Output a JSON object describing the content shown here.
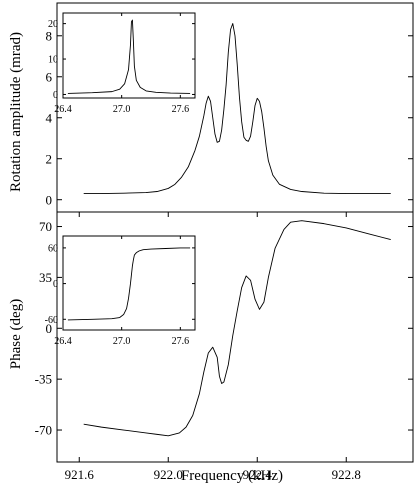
{
  "chart_data": [
    {
      "type": "line",
      "panel": "top",
      "ylabel": "Rotation amplitude (mrad)",
      "xlim": [
        921.5,
        923.1
      ],
      "ylim": [
        -0.6,
        9.6
      ],
      "yticks": [
        0,
        2,
        4,
        6,
        8
      ],
      "grid": false,
      "series": [
        {
          "x": [
            921.62,
            921.7,
            921.8,
            921.9,
            921.95,
            922.0,
            922.03,
            922.06,
            922.09,
            922.12,
            922.14,
            922.16,
            922.17,
            922.18,
            922.19,
            922.2,
            922.21,
            922.22,
            922.23,
            922.24,
            922.25,
            922.26,
            922.27,
            922.28,
            922.29,
            922.3,
            922.31,
            922.32,
            922.33,
            922.34,
            922.35,
            922.36,
            922.37,
            922.38,
            922.39,
            922.4,
            922.41,
            922.42,
            922.43,
            922.44,
            922.45,
            922.47,
            922.5,
            922.55,
            922.6,
            922.7,
            922.8,
            922.9,
            923.0
          ],
          "y": [
            0.3,
            0.3,
            0.32,
            0.35,
            0.4,
            0.55,
            0.75,
            1.1,
            1.6,
            2.4,
            3.1,
            4.1,
            4.7,
            5.05,
            4.8,
            4.0,
            3.2,
            2.8,
            2.85,
            3.4,
            4.4,
            5.6,
            7.2,
            8.3,
            8.6,
            8.0,
            6.6,
            5.0,
            3.8,
            3.05,
            2.9,
            2.85,
            3.1,
            3.8,
            4.6,
            4.95,
            4.8,
            4.3,
            3.5,
            2.6,
            1.9,
            1.2,
            0.75,
            0.5,
            0.4,
            0.32,
            0.3,
            0.3,
            0.3
          ]
        }
      ]
    },
    {
      "type": "line",
      "panel": "top-inset",
      "xlim": [
        26.4,
        27.75
      ],
      "ylim": [
        -1,
        23
      ],
      "xticks": [
        26.4,
        27.0,
        27.6
      ],
      "yticks": [
        0,
        10,
        20
      ],
      "grid": false,
      "series": [
        {
          "x": [
            26.45,
            26.7,
            26.9,
            26.98,
            27.03,
            27.07,
            27.09,
            27.1,
            27.11,
            27.12,
            27.13,
            27.15,
            27.19,
            27.25,
            27.35,
            27.5,
            27.7
          ],
          "y": [
            0.3,
            0.5,
            0.8,
            1.5,
            3.0,
            7.0,
            14.0,
            20.5,
            21.0,
            15.0,
            8.0,
            4.0,
            2.0,
            1.0,
            0.6,
            0.4,
            0.3
          ]
        }
      ]
    },
    {
      "type": "line",
      "panel": "bottom",
      "xlabel": "Frequency (kHz)",
      "ylabel": "Phase (deg)",
      "xlim": [
        921.5,
        923.1
      ],
      "ylim": [
        -92,
        80
      ],
      "xticks": [
        921.6,
        922.0,
        922.4,
        922.8
      ],
      "yticks": [
        -70,
        -35,
        0,
        35,
        70
      ],
      "grid": false,
      "series": [
        {
          "x": [
            921.62,
            921.7,
            921.8,
            921.9,
            921.95,
            922.0,
            922.05,
            922.08,
            922.11,
            922.14,
            922.16,
            922.18,
            922.2,
            922.22,
            922.23,
            922.24,
            922.25,
            922.27,
            922.29,
            922.31,
            922.33,
            922.35,
            922.37,
            922.39,
            922.41,
            922.43,
            922.45,
            922.48,
            922.52,
            922.55,
            922.6,
            922.7,
            922.8,
            922.9,
            923.0
          ],
          "y": [
            -66,
            -68,
            -70,
            -72,
            -73,
            -74,
            -72,
            -68,
            -60,
            -45,
            -30,
            -17,
            -13,
            -20,
            -33,
            -38,
            -37,
            -25,
            -5,
            12,
            28,
            36,
            33,
            20,
            13,
            18,
            35,
            55,
            68,
            73,
            74,
            72,
            69,
            65,
            61
          ]
        }
      ]
    },
    {
      "type": "line",
      "panel": "bottom-inset",
      "xlim": [
        26.4,
        27.75
      ],
      "ylim": [
        -78,
        80
      ],
      "xticks": [
        26.4,
        27.0,
        27.6
      ],
      "yticks": [
        -60,
        0,
        60
      ],
      "grid": false,
      "series": [
        {
          "x": [
            26.45,
            26.7,
            26.9,
            26.98,
            27.02,
            27.05,
            27.07,
            27.09,
            27.1,
            27.11,
            27.12,
            27.13,
            27.15,
            27.18,
            27.22,
            27.3,
            27.45,
            27.6,
            27.7
          ],
          "y": [
            -61,
            -60,
            -59,
            -57,
            -52,
            -42,
            -25,
            0,
            15,
            30,
            40,
            48,
            52,
            55,
            57,
            58,
            59,
            60,
            60
          ]
        }
      ]
    }
  ]
}
